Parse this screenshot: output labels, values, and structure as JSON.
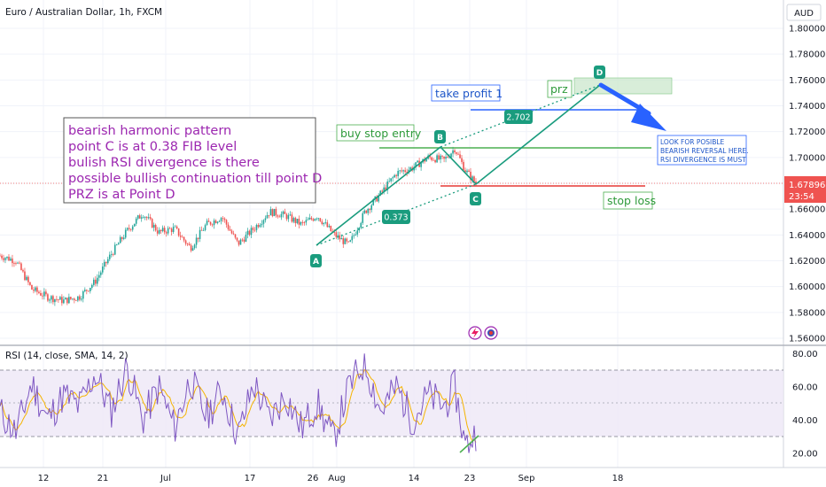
{
  "header": {
    "symbol_title": "Euro / Australian Dollar, 1h, FXCM",
    "currency": "AUD"
  },
  "price_axis": {
    "ticks": [
      "1.80000",
      "1.78000",
      "1.76000",
      "1.74000",
      "1.72000",
      "1.70000",
      "1.68000",
      "1.66000",
      "1.64000",
      "1.62000",
      "1.60000",
      "1.58000",
      "1.56000"
    ],
    "last_price": "1.67896",
    "countdown": "23:54"
  },
  "time_axis": {
    "ticks": [
      "12",
      "21",
      "Jul",
      "17",
      "26",
      "Aug",
      "14",
      "23",
      "Sep",
      "18"
    ]
  },
  "annotations": {
    "analysis_lines": [
      "bearish harmonic pattern",
      "point C is at 0.38 FIB level",
      "bulish RSI divergence is there",
      "possible bullish continuation till point D",
      "PRZ is at Point D"
    ],
    "buy_stop_entry": "buy stop entry",
    "take_profit": "take profit 1",
    "prz": "prz",
    "stop_loss": "stop loss",
    "reversal_note": [
      "LOOK FOR POSIBLE",
      "BEARISH REVERSAL HERE.",
      "RSI DIVERGENCE IS MUST"
    ],
    "point_labels": [
      "A",
      "B",
      "C",
      "D"
    ],
    "ratio_ac": "0.373",
    "ratio_bd": "2.702"
  },
  "rsi_panel": {
    "legend": "RSI (14, close, SMA, 14, 2)",
    "ticks": [
      "80.00",
      "60.00",
      "40.00",
      "20.00"
    ]
  },
  "colors": {
    "candle_up": "#26a69a",
    "candle_down": "#ef5350",
    "pattern": "#1a9c7e",
    "entry_line": "#4caf50",
    "take_profit_line": "#2962ff",
    "stop_line": "#e53935",
    "rsi_line": "#7e57c2",
    "rsi_ma": "#f5b400",
    "rsi_band": "#ede7f6",
    "price_label": "#ef5350"
  },
  "chart_data": [
    {
      "type": "candlestick",
      "title": "Euro / Australian Dollar, 1h, FXCM",
      "ylim": [
        1.56,
        1.81
      ],
      "pattern_points": [
        {
          "label": "A",
          "price": 1.632
        },
        {
          "label": "B",
          "price": 1.707
        },
        {
          "label": "C",
          "price": 1.678
        },
        {
          "label": "D",
          "price": 1.755
        }
      ],
      "price_levels": [
        {
          "label": "buy stop entry",
          "price": 1.707
        },
        {
          "label": "take profit 1",
          "price": 1.737
        },
        {
          "label": "stop loss",
          "price": 1.677
        }
      ],
      "close_path": [
        {
          "x": 0,
          "y": 1.624
        },
        {
          "x": 3,
          "y": 1.62
        },
        {
          "x": 6,
          "y": 1.598
        },
        {
          "x": 9,
          "y": 1.592
        },
        {
          "x": 12,
          "y": 1.589
        },
        {
          "x": 15,
          "y": 1.592
        },
        {
          "x": 18,
          "y": 1.604
        },
        {
          "x": 21,
          "y": 1.625
        },
        {
          "x": 24,
          "y": 1.643
        },
        {
          "x": 27,
          "y": 1.657
        },
        {
          "x": 30,
          "y": 1.642
        },
        {
          "x": 33,
          "y": 1.645
        },
        {
          "x": 36,
          "y": 1.63
        },
        {
          "x": 39,
          "y": 1.648
        },
        {
          "x": 42,
          "y": 1.654
        },
        {
          "x": 45,
          "y": 1.633
        },
        {
          "x": 48,
          "y": 1.645
        },
        {
          "x": 51,
          "y": 1.658
        },
        {
          "x": 54,
          "y": 1.655
        },
        {
          "x": 57,
          "y": 1.648
        },
        {
          "x": 60,
          "y": 1.655
        },
        {
          "x": 63,
          "y": 1.641
        },
        {
          "x": 66,
          "y": 1.632
        },
        {
          "x": 69,
          "y": 1.658
        },
        {
          "x": 72,
          "y": 1.672
        },
        {
          "x": 75,
          "y": 1.688
        },
        {
          "x": 78,
          "y": 1.692
        },
        {
          "x": 81,
          "y": 1.7
        },
        {
          "x": 84,
          "y": 1.698
        },
        {
          "x": 86,
          "y": 1.707
        },
        {
          "x": 88,
          "y": 1.69
        },
        {
          "x": 90,
          "y": 1.68
        }
      ]
    },
    {
      "type": "line",
      "title": "RSI (14, close, SMA, 14, 2)",
      "ylim": [
        15,
        83
      ],
      "levels": [
        70,
        50,
        30
      ],
      "rsi_path": [
        {
          "x": 0,
          "y": 45
        },
        {
          "x": 3,
          "y": 32
        },
        {
          "x": 6,
          "y": 62
        },
        {
          "x": 9,
          "y": 40
        },
        {
          "x": 12,
          "y": 55
        },
        {
          "x": 15,
          "y": 48
        },
        {
          "x": 18,
          "y": 68
        },
        {
          "x": 21,
          "y": 45
        },
        {
          "x": 24,
          "y": 72
        },
        {
          "x": 27,
          "y": 40
        },
        {
          "x": 30,
          "y": 60
        },
        {
          "x": 33,
          "y": 35
        },
        {
          "x": 36,
          "y": 65
        },
        {
          "x": 39,
          "y": 42
        },
        {
          "x": 42,
          "y": 58
        },
        {
          "x": 45,
          "y": 30
        },
        {
          "x": 48,
          "y": 62
        },
        {
          "x": 51,
          "y": 40
        },
        {
          "x": 54,
          "y": 55
        },
        {
          "x": 57,
          "y": 35
        },
        {
          "x": 60,
          "y": 50
        },
        {
          "x": 63,
          "y": 28
        },
        {
          "x": 66,
          "y": 60
        },
        {
          "x": 69,
          "y": 75
        },
        {
          "x": 72,
          "y": 45
        },
        {
          "x": 75,
          "y": 60
        },
        {
          "x": 78,
          "y": 40
        },
        {
          "x": 81,
          "y": 55
        },
        {
          "x": 84,
          "y": 48
        },
        {
          "x": 86,
          "y": 60
        },
        {
          "x": 88,
          "y": 24
        },
        {
          "x": 90,
          "y": 32
        }
      ]
    }
  ]
}
